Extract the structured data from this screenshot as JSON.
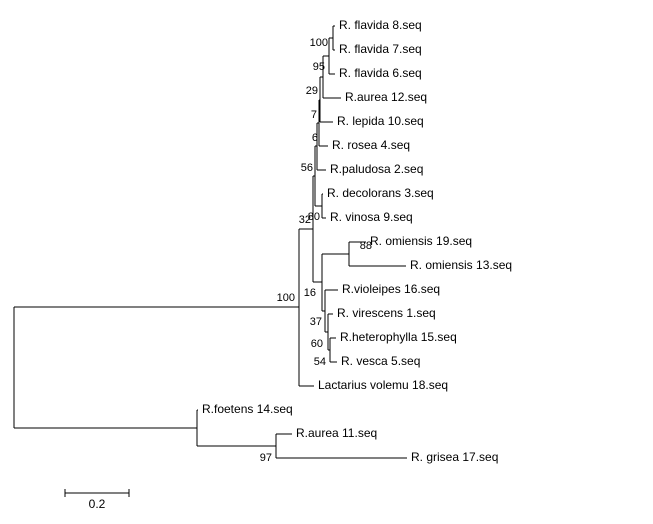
{
  "leaves": [
    "R. flavida 8.seq",
    "R. flavida 7.seq",
    "R. flavida 6.seq",
    "R.aurea 12.seq",
    "R. lepida 10.seq",
    "R. rosea 4.seq",
    "R.paludosa 2.seq",
    "R. decolorans 3.seq",
    "R. vinosa 9.seq",
    "R. omiensis 19.seq",
    "R. omiensis 13.seq",
    "R.violeipes 16.seq",
    "R. virescens 1.seq",
    "R.heterophylla 15.seq",
    "R. vesca 5.seq",
    "Lactarius volemu 18.seq",
    "R.foetens 14.seq",
    "R.aurea 11.seq",
    "R. grisea 17.seq"
  ],
  "bootstrap": [
    100,
    95,
    29,
    7,
    6,
    56,
    80,
    32,
    88,
    16,
    37,
    60,
    54,
    100,
    97
  ],
  "scale_bar": {
    "label": "0.2"
  }
}
